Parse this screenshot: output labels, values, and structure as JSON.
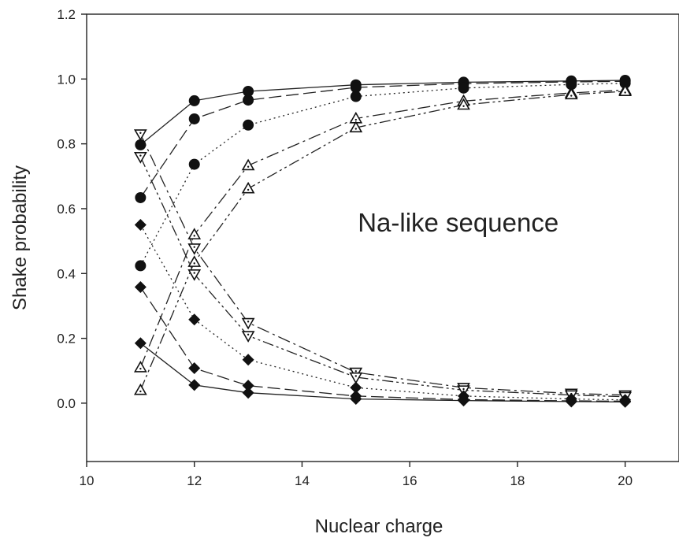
{
  "chart_data": {
    "type": "line",
    "title": "",
    "xlabel": "Nuclear charge",
    "ylabel": "Shake probability",
    "xlim": [
      10,
      21
    ],
    "ylim": [
      -0.18,
      1.2
    ],
    "xticks": [
      10,
      12,
      14,
      16,
      18,
      20
    ],
    "yticks": [
      0.0,
      0.2,
      0.4,
      0.6,
      0.8,
      1.0,
      1.2
    ],
    "grid": false,
    "annotations": [
      {
        "text": "Na-like sequence",
        "x": 16.9,
        "y": 0.53
      }
    ],
    "x": [
      11,
      12,
      13,
      15,
      17,
      19,
      20
    ],
    "series": [
      {
        "marker": "circle",
        "line": "solid",
        "values": [
          0.797,
          0.933,
          0.962,
          0.982,
          0.99,
          0.994,
          0.996
        ]
      },
      {
        "marker": "circle",
        "line": "dash",
        "values": [
          0.634,
          0.877,
          0.935,
          0.974,
          0.986,
          0.991,
          0.993
        ]
      },
      {
        "marker": "circle",
        "line": "dot",
        "values": [
          0.424,
          0.737,
          0.858,
          0.946,
          0.972,
          0.983,
          0.987
        ]
      },
      {
        "marker": "triangle-up",
        "line": "dashdot",
        "values": [
          0.11,
          0.52,
          0.733,
          0.878,
          0.932,
          0.957,
          0.966
        ]
      },
      {
        "marker": "triangle-up",
        "line": "dashdotdot",
        "values": [
          0.04,
          0.435,
          0.662,
          0.85,
          0.92,
          0.952,
          0.962
        ]
      },
      {
        "marker": "triangle-down",
        "line": "dashdot",
        "values": [
          0.83,
          0.478,
          0.248,
          0.095,
          0.048,
          0.03,
          0.025
        ]
      },
      {
        "marker": "triangle-down",
        "line": "dashdotdot",
        "values": [
          0.76,
          0.398,
          0.208,
          0.08,
          0.04,
          0.025,
          0.02
        ]
      },
      {
        "marker": "diamond",
        "line": "dot",
        "values": [
          0.55,
          0.258,
          0.134,
          0.048,
          0.022,
          0.013,
          0.01
        ]
      },
      {
        "marker": "diamond",
        "line": "dash",
        "values": [
          0.358,
          0.108,
          0.054,
          0.022,
          0.011,
          0.007,
          0.006
        ]
      },
      {
        "marker": "diamond",
        "line": "solid",
        "values": [
          0.185,
          0.056,
          0.032,
          0.013,
          0.008,
          0.005,
          0.004
        ]
      }
    ]
  }
}
